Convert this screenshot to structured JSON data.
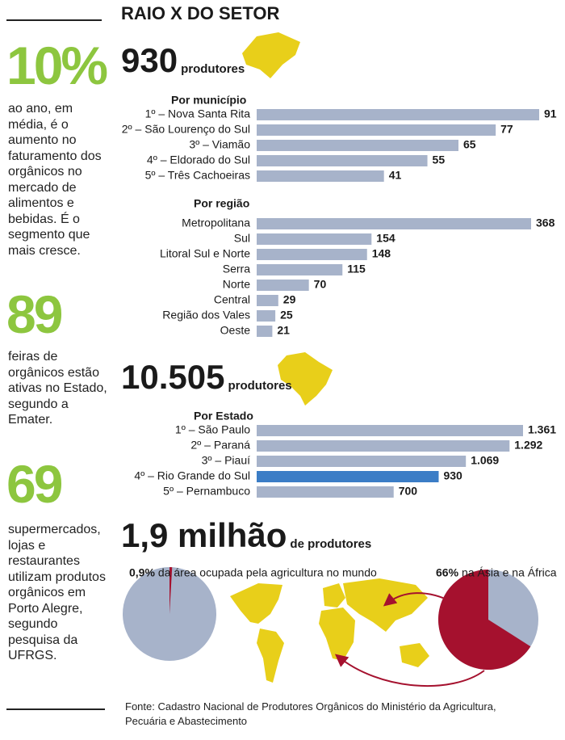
{
  "title": "RAIO X DO SETOR",
  "sidebar": [
    {
      "figure": "10%",
      "text": "ao ano, em média, é o aumento no faturamento dos orgânicos no mercado de alimentos e bebidas. É o segmento que mais cresce."
    },
    {
      "figure": "89",
      "text": "feiras de orgânicos estão ativas no Estado, segundo a Emater."
    },
    {
      "figure": "69",
      "text": "supermercados, lojas e restaurantes utilizam produtos orgânicos em Porto Alegre, segundo pesquisa da UFRGS."
    }
  ],
  "sections": [
    {
      "figure": "930",
      "unit": "produtores"
    },
    {
      "figure": "10.505",
      "unit": "produtores"
    },
    {
      "figure": "1,9 milhão",
      "unit": "de produtores"
    }
  ],
  "chart_data": [
    {
      "type": "bar",
      "orientation": "horizontal",
      "title": "Por município",
      "categories": [
        "1º – Nova Santa Rita",
        "2º – São Lourenço do Sul",
        "3º – Viamão",
        "4º – Eldorado do Sul",
        "5º – Três Cachoeiras"
      ],
      "values": [
        91,
        77,
        65,
        55,
        41
      ],
      "color": "#a7b3ca"
    },
    {
      "type": "bar",
      "orientation": "horizontal",
      "title": "Por região",
      "categories": [
        "Metropolitana",
        "Sul",
        "Litoral Sul e Norte",
        "Serra",
        "Norte",
        "Central",
        "Região dos Vales",
        "Oeste"
      ],
      "values": [
        368,
        154,
        148,
        115,
        70,
        29,
        25,
        21
      ],
      "color": "#a7b3ca"
    },
    {
      "type": "bar",
      "orientation": "horizontal",
      "title": "Por Estado",
      "categories": [
        "1º – São Paulo",
        "2º – Paraná",
        "3º – Piauí",
        "4º – Rio Grande do Sul",
        "5º – Pernambuco"
      ],
      "values": [
        1361,
        1292,
        1069,
        930,
        700
      ],
      "value_labels": [
        "1.361",
        "1.292",
        "1.069",
        "930",
        "700"
      ],
      "colors": [
        "#a7b3ca",
        "#a7b3ca",
        "#a7b3ca",
        "#3b7dc6",
        "#a7b3ca"
      ]
    },
    {
      "type": "pie",
      "values": [
        0.9
      ],
      "value_labels": [
        "0,9%"
      ],
      "label": "da área ocupada pela agricultura no mundo",
      "color": "#a5112e"
    },
    {
      "type": "pie",
      "values": [
        66
      ],
      "value_labels": [
        "66%"
      ],
      "label": "na Ásia e na África",
      "color": "#a5112e"
    }
  ],
  "source": "Fonte: Cadastro Nacional de Produtores Orgânicos do Ministério da Agricultura, Pecuária e Abastecimento"
}
